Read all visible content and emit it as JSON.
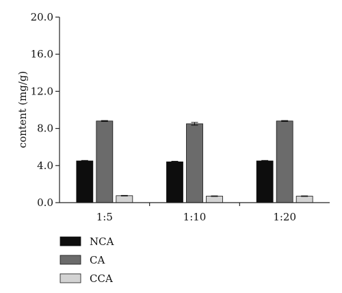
{
  "chart_data": {
    "type": "bar",
    "title": "",
    "xlabel": "",
    "ylabel": "content (mg/g)",
    "categories": [
      "1:5",
      "1:10",
      "1:20"
    ],
    "ylim": [
      0,
      20
    ],
    "yticks": [
      "0.0",
      "4.0",
      "8.0",
      "12.0",
      "16.0",
      "20.0"
    ],
    "grid": false,
    "legend_position": "bottom-left",
    "series": [
      {
        "name": "NCA",
        "values": [
          4.5,
          4.4,
          4.5
        ],
        "errors": [
          0.05,
          0.06,
          0.05
        ],
        "color": "#0d0d0d"
      },
      {
        "name": "CA",
        "values": [
          8.8,
          8.5,
          8.8
        ],
        "errors": [
          0.05,
          0.15,
          0.05
        ],
        "color": "#6b6b6b"
      },
      {
        "name": "CCA",
        "values": [
          0.75,
          0.7,
          0.7
        ],
        "errors": [
          0.03,
          0.03,
          0.03
        ],
        "color": "#d3d3d3"
      }
    ]
  }
}
